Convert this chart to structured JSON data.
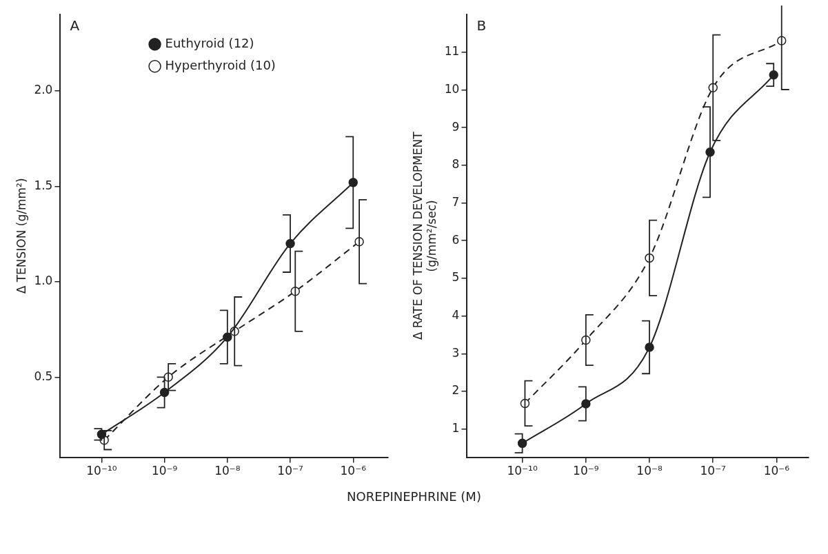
{
  "chart_data": [
    {
      "type": "line",
      "annotations": [
        "A"
      ],
      "xlabel": "NOREPINEPHRINE (M)",
      "ylabel": "Δ TENSION (g/mm²)",
      "log": "x",
      "grid": false,
      "legend": "top",
      "marker": "circle",
      "xlim": [
        2.2e-11,
        3.6e-06
      ],
      "xticks": [
        {
          "value": 1e-10,
          "label": "10⁻¹⁰"
        },
        {
          "value": 1e-09,
          "label": "10⁻⁹"
        },
        {
          "value": 1e-08,
          "label": "10⁻⁸"
        },
        {
          "value": 1e-07,
          "label": "10⁻⁷"
        },
        {
          "value": 1e-06,
          "label": "10⁻⁶"
        }
      ],
      "ylim": [
        0.08,
        2.4
      ],
      "yticks": [
        {
          "value": 0.5,
          "label": "0.5"
        },
        {
          "value": 1.0,
          "label": "1.0"
        },
        {
          "value": 1.5,
          "label": "1.5"
        },
        {
          "value": 2.0,
          "label": "2.0"
        }
      ],
      "series": [
        {
          "name": "Euthyroid (12)",
          "color": "#222222",
          "line_style": "solid",
          "x": [
            1e-10,
            1e-09,
            1e-08,
            1e-07,
            1e-06
          ],
          "values": [
            0.2,
            0.42,
            0.71,
            1.2,
            1.52
          ],
          "errors": [
            0.03,
            0.08,
            0.14,
            0.15,
            0.24
          ]
        },
        {
          "name": "Hyperthyroid (10)",
          "color": "#222222",
          "line_style": "dashed",
          "x": [
            1.1e-10,
            1.15e-09,
            1.3e-08,
            1.2e-07,
            1.25e-06
          ],
          "values": [
            0.17,
            0.5,
            0.74,
            0.95,
            1.21
          ],
          "errors": [
            0.05,
            0.07,
            0.18,
            0.21,
            0.22
          ]
        }
      ]
    },
    {
      "type": "line",
      "annotations": [
        "B"
      ],
      "ylabel": "Δ RATE OF TENSION DEVELOPMENT\n(g/mm²/sec)",
      "log": "x",
      "grid": false,
      "marker": "circle",
      "xlim": [
        1.35e-11,
        3.2e-06
      ],
      "xticks": [
        {
          "value": 1e-10,
          "label": "10⁻¹⁰"
        },
        {
          "value": 1e-09,
          "label": "10⁻⁹"
        },
        {
          "value": 1e-08,
          "label": "10⁻⁸"
        },
        {
          "value": 1e-07,
          "label": "10⁻⁷"
        },
        {
          "value": 1e-06,
          "label": "10⁻⁶"
        }
      ],
      "ylim": [
        0.25,
        12
      ],
      "yticks": [
        1,
        2,
        3,
        4,
        5,
        6,
        7,
        8,
        9,
        10,
        11
      ],
      "series": [
        {
          "color": "#222222",
          "line_style": "solid",
          "x": [
            1e-10,
            1e-09,
            1e-08,
            9e-08,
            9e-07
          ],
          "values": [
            0.62,
            1.67,
            3.17,
            8.35,
            10.4
          ],
          "errors": [
            0.25,
            0.45,
            0.7,
            1.2,
            0.3
          ]
        },
        {
          "color": "#222222",
          "line_style": "dashed",
          "x": [
            1.1e-10,
            1e-09,
            1e-08,
            1e-07,
            1.2e-06
          ],
          "values": [
            1.68,
            3.36,
            5.54,
            10.06,
            11.31
          ],
          "errors": [
            0.6,
            0.67,
            1.0,
            1.4,
            1.3
          ]
        }
      ]
    }
  ]
}
